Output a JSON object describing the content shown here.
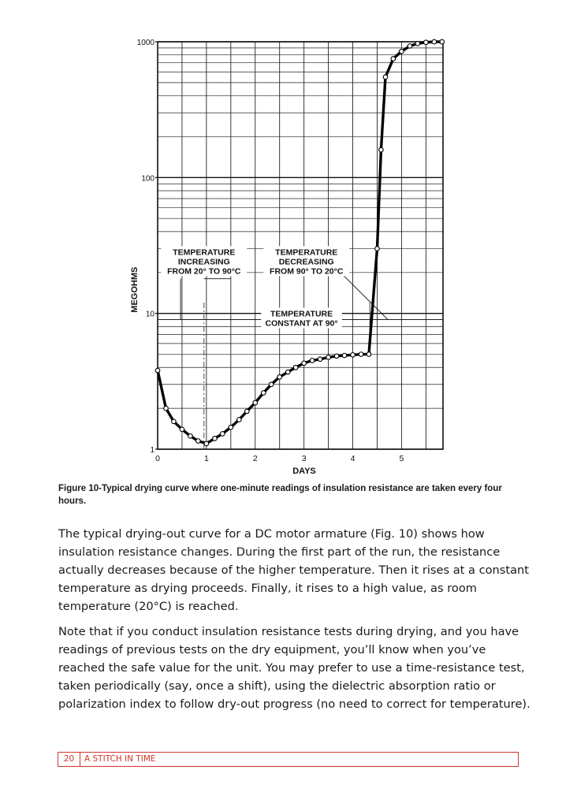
{
  "chart_data": {
    "type": "line",
    "title": "",
    "xlabel": "DAYS",
    "ylabel": "MEGOHMS",
    "y_scale": "log",
    "xlim": [
      0,
      5.85
    ],
    "ylim": [
      1,
      1000
    ],
    "x_ticks": [
      "0",
      "1",
      "2",
      "3",
      "4",
      "5"
    ],
    "y_ticks": [
      "1",
      "10",
      "100",
      "1000"
    ],
    "grid": true,
    "series": [
      {
        "name": "",
        "x": [
          0,
          0.17,
          0.33,
          0.5,
          0.67,
          0.83,
          1.0,
          1.17,
          1.33,
          1.5,
          1.67,
          1.83,
          2.0,
          2.17,
          2.33,
          2.5,
          2.67,
          2.83,
          3.0,
          3.17,
          3.33,
          3.5,
          3.67,
          3.83,
          4.0,
          4.17,
          4.33,
          4.5,
          4.58,
          4.67,
          4.83,
          5.0,
          5.17,
          5.33,
          5.5,
          5.67,
          5.83
        ],
        "y": [
          3.8,
          2.0,
          1.6,
          1.4,
          1.25,
          1.15,
          1.1,
          1.2,
          1.3,
          1.45,
          1.65,
          1.9,
          2.2,
          2.6,
          3.0,
          3.4,
          3.7,
          4.0,
          4.3,
          4.5,
          4.6,
          4.75,
          4.85,
          4.9,
          4.95,
          5.0,
          5.0,
          30,
          160,
          550,
          750,
          850,
          930,
          970,
          990,
          1000,
          1000
        ]
      }
    ],
    "annotations": [
      {
        "id": "increasing",
        "lines": [
          "TEMPERATURE",
          "INCREASING",
          "FROM 20° TO 90°C"
        ]
      },
      {
        "id": "decreasing",
        "lines": [
          "TEMPERATURE",
          "DECREASING",
          "FROM 90° TO 20°C"
        ]
      },
      {
        "id": "constant",
        "lines": [
          "TEMPERATURE",
          "CONSTANT AT 90°"
        ]
      }
    ]
  },
  "caption": "Figure 10-Typical drying curve where one-minute readings of insulation resistance are taken every four hours.",
  "paragraphs": [
    "The typical drying-out curve for a DC motor armature (Fig. 10) shows how insulation resistance changes. During the first part of the run, the resistance actually decreases because of the higher temperature. Then it rises at a constant temperature as drying proceeds. Finally, it rises to a high value, as room temperature (20°C) is reached.",
    "Note that if you conduct insulation resistance tests during drying, and you have readings of previous tests on the dry equipment, you’ll know when you’ve reached the safe value for the unit. You may prefer to use a time-resistance test, taken periodically (say, once a shift), using the dielectric absorption ratio or polarization index to follow dry-out progress (no need to correct for temperature)."
  ],
  "footer": {
    "page_number": "20",
    "title": "A STITCH IN TIME"
  }
}
